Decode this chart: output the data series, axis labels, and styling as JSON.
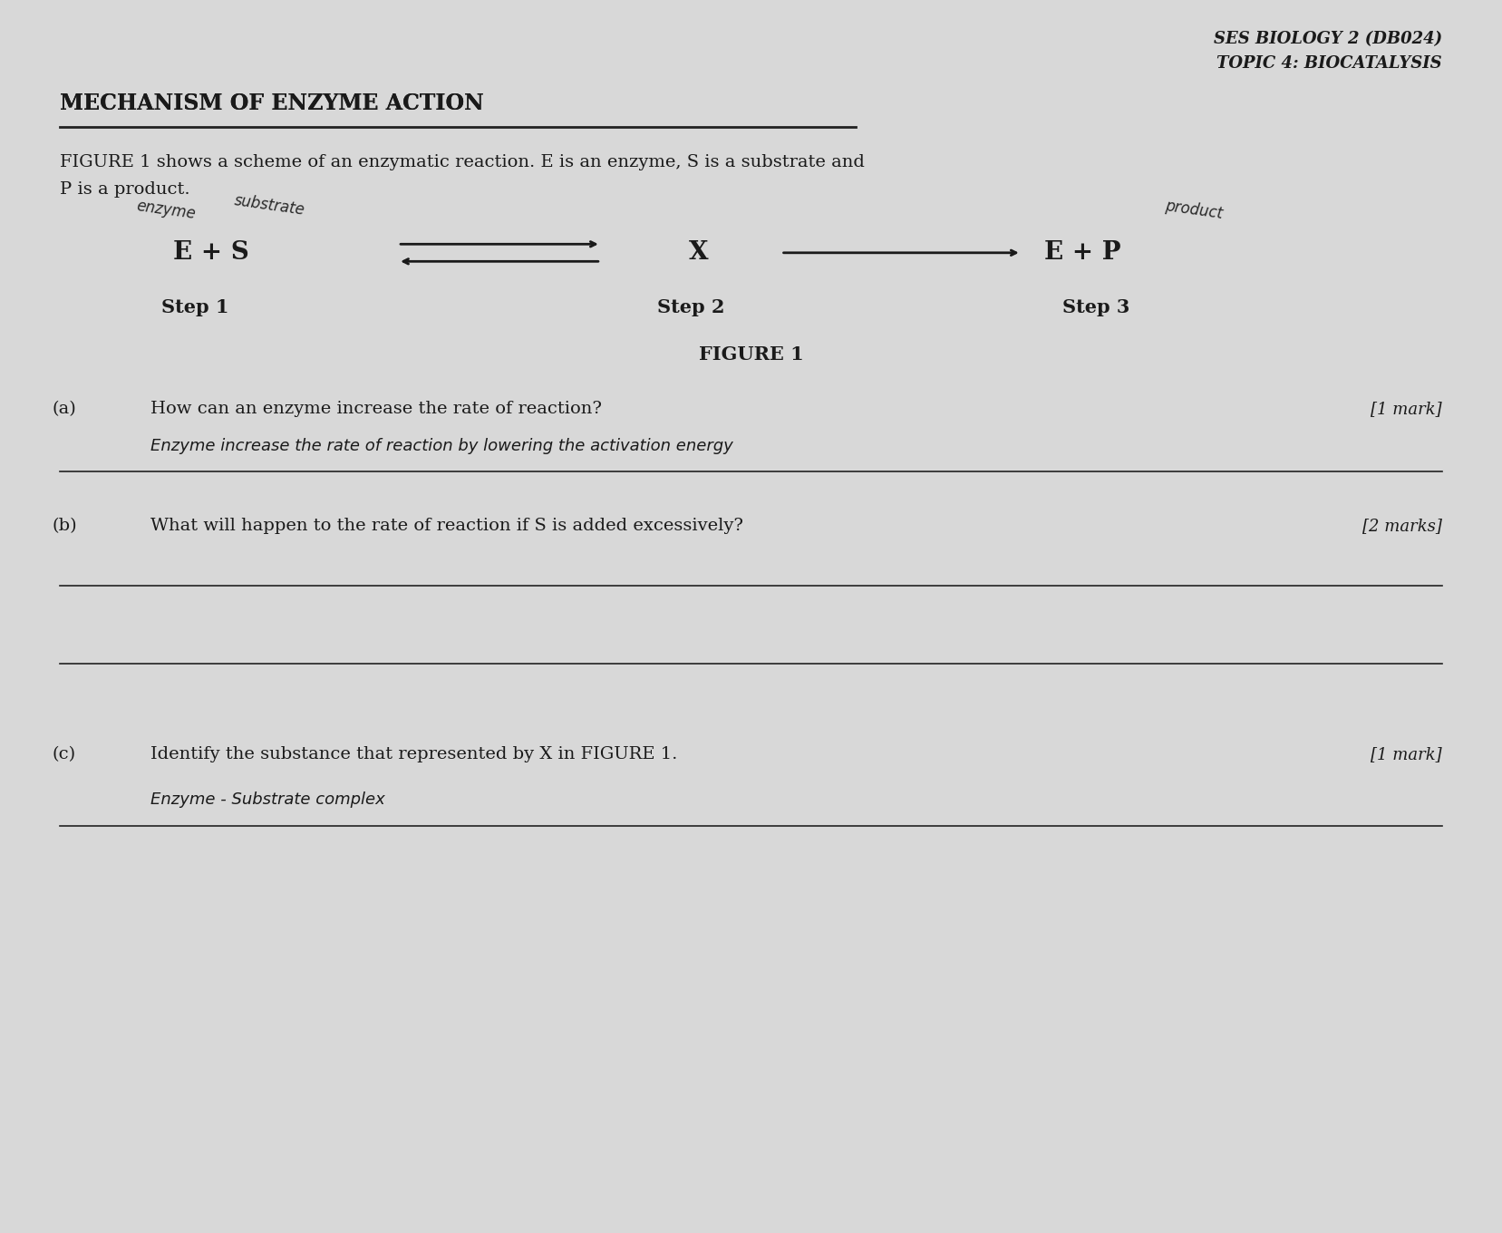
{
  "bg_color": "#d8d8d8",
  "header_right_line1": "SES BIOLOGY 2 (DB024)",
  "header_right_line2": "TOPIC 4: BIOCATALYSIS",
  "section_title": "MECHANISM OF ENZYME ACTION",
  "intro_text_line1": "FIGURE 1 shows a scheme of an enzymatic reaction. E is an enzyme, S is a substrate and",
  "intro_text_line2": "P is a product.",
  "handwritten_enzyme": "enzyme",
  "handwritten_substrate": "substrate",
  "handwritten_product": "product",
  "eq_left": "E + S",
  "eq_middle": "X",
  "eq_right": "E + P",
  "step1": "Step 1",
  "step2": "Step 2",
  "step3": "Step 3",
  "figure_caption": "FIGURE 1",
  "qa_label": "(a)",
  "qa_question": "How can an enzyme increase the rate of reaction?",
  "qa_marks": "[1 mark]",
  "qa_answer": "Enzyme increase the rate of reaction by lowering the activation energy",
  "qb_label": "(b)",
  "qb_question": "What will happen to the rate of reaction if S is added excessively?",
  "qb_marks": "[2 marks]",
  "qc_label": "(c)",
  "qc_question": "Identify the substance that represented by X in FIGURE 1.",
  "qc_marks": "[1 mark]",
  "qc_answer": "Enzyme - Substrate complex"
}
